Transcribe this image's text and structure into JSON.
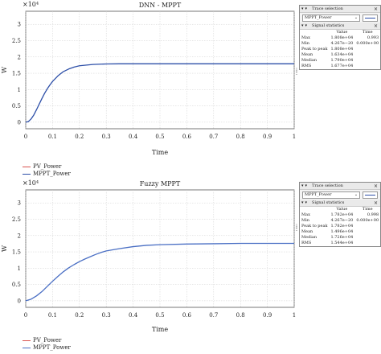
{
  "chart_data": [
    {
      "type": "line",
      "title": "DNN - MPPT",
      "xlabel": "Time",
      "ylabel": "W",
      "exponent_label": "×10⁴",
      "xlim": [
        0,
        1
      ],
      "ylim": [
        -0.2,
        3.4
      ],
      "xticks": [
        0,
        0.1,
        0.2,
        0.3,
        0.4,
        0.5,
        0.6,
        0.7,
        0.8,
        0.9,
        1
      ],
      "xtick_labels": [
        "0",
        "0.1",
        "0.2",
        "0.3",
        "0.4",
        "0.5",
        "0.6",
        "0.7",
        "0.8",
        "0.9",
        "1"
      ],
      "yticks": [
        0,
        0.5,
        1,
        1.5,
        2,
        2.5,
        3
      ],
      "ytick_labels": [
        "0",
        "0.5",
        "1",
        "1.5",
        "2",
        "2.5",
        "3"
      ],
      "grid": true,
      "series": [
        {
          "name": "MPPT_Power",
          "color": "#2d4fa8",
          "x": [
            0,
            0.01,
            0.02,
            0.03,
            0.04,
            0.05,
            0.06,
            0.07,
            0.08,
            0.09,
            0.1,
            0.12,
            0.14,
            0.16,
            0.18,
            0.2,
            0.25,
            0.3,
            0.35,
            0.4,
            0.5,
            0.6,
            0.7,
            0.8,
            0.9,
            1
          ],
          "values": [
            0,
            0.02,
            0.1,
            0.22,
            0.38,
            0.55,
            0.72,
            0.88,
            1.02,
            1.14,
            1.25,
            1.42,
            1.55,
            1.63,
            1.69,
            1.73,
            1.77,
            1.785,
            1.79,
            1.79,
            1.79,
            1.79,
            1.79,
            1.79,
            1.79,
            1.79
          ]
        }
      ],
      "legend": [
        "PV_Power",
        "MPPT_Power"
      ],
      "legend_colors": [
        "#d9534f",
        "#2d4fa8"
      ],
      "legend_position": "bottom-left"
    },
    {
      "type": "line",
      "title": "Fuzzy MPPT",
      "xlabel": "Time",
      "ylabel": "W",
      "exponent_label": "×10⁴",
      "xlim": [
        0,
        1
      ],
      "ylim": [
        -0.2,
        3.4
      ],
      "xticks": [
        0,
        0.1,
        0.2,
        0.3,
        0.4,
        0.5,
        0.6,
        0.7,
        0.8,
        0.9,
        1
      ],
      "xtick_labels": [
        "0",
        "0.1",
        "0.2",
        "0.3",
        "0.4",
        "0.5",
        "0.6",
        "0.7",
        "0.8",
        "0.9",
        "1"
      ],
      "yticks": [
        0,
        0.5,
        1,
        1.5,
        2,
        2.5,
        3
      ],
      "ytick_labels": [
        "0",
        "0.5",
        "1",
        "1.5",
        "2",
        "2.5",
        "3"
      ],
      "grid": true,
      "series": [
        {
          "name": "MPPT_Power",
          "color": "#4a6fc4",
          "x": [
            0,
            0.02,
            0.04,
            0.06,
            0.08,
            0.1,
            0.12,
            0.14,
            0.16,
            0.18,
            0.2,
            0.22,
            0.24,
            0.26,
            0.28,
            0.3,
            0.35,
            0.4,
            0.45,
            0.5,
            0.6,
            0.7,
            0.8,
            0.9,
            1
          ],
          "values": [
            0,
            0.05,
            0.15,
            0.28,
            0.44,
            0.6,
            0.75,
            0.89,
            1.01,
            1.11,
            1.2,
            1.28,
            1.35,
            1.42,
            1.48,
            1.53,
            1.6,
            1.66,
            1.7,
            1.72,
            1.74,
            1.75,
            1.76,
            1.76,
            1.76
          ]
        }
      ],
      "legend": [
        "PV_Power",
        "MPPT_Power"
      ],
      "legend_colors": [
        "#d9534f",
        "#4a6fc4"
      ],
      "legend_position": "bottom-left"
    }
  ],
  "side_panels": [
    {
      "trace_title": "Trace selection",
      "selected_trace": "MPPT_Power",
      "stats_title": "Signal statistics",
      "col_value": "Value",
      "col_time": "Time",
      "rows": [
        {
          "label": "Max",
          "value": "1.808e+04",
          "time": "0.993"
        },
        {
          "label": "Min",
          "value": "4.267e−20",
          "time": "0.000e+00"
        },
        {
          "label": "Peak to peak",
          "value": "1.808e+04",
          "time": ""
        },
        {
          "label": "Mean",
          "value": "1.634e+04",
          "time": ""
        },
        {
          "label": "Median",
          "value": "1.790e+04",
          "time": ""
        },
        {
          "label": "RMS",
          "value": "1.677e+04",
          "time": ""
        }
      ]
    },
    {
      "trace_title": "Trace selection",
      "selected_trace": "MPPT_Power",
      "stats_title": "Signal statistics",
      "col_value": "Value",
      "col_time": "Time",
      "rows": [
        {
          "label": "Max",
          "value": "1.782e+04",
          "time": "0.998"
        },
        {
          "label": "Min",
          "value": "4.267e−20",
          "time": "0.000e+00"
        },
        {
          "label": "Peak to peak",
          "value": "1.782e+04",
          "time": ""
        },
        {
          "label": "Mean",
          "value": "1.496e+04",
          "time": ""
        },
        {
          "label": "Median",
          "value": "1.726e+04",
          "time": ""
        },
        {
          "label": "RMS",
          "value": "1.544e+04",
          "time": ""
        }
      ]
    }
  ],
  "icons": {
    "collapse": "▾",
    "close": "×",
    "dropdown": "⌄",
    "grip": "⋮"
  }
}
